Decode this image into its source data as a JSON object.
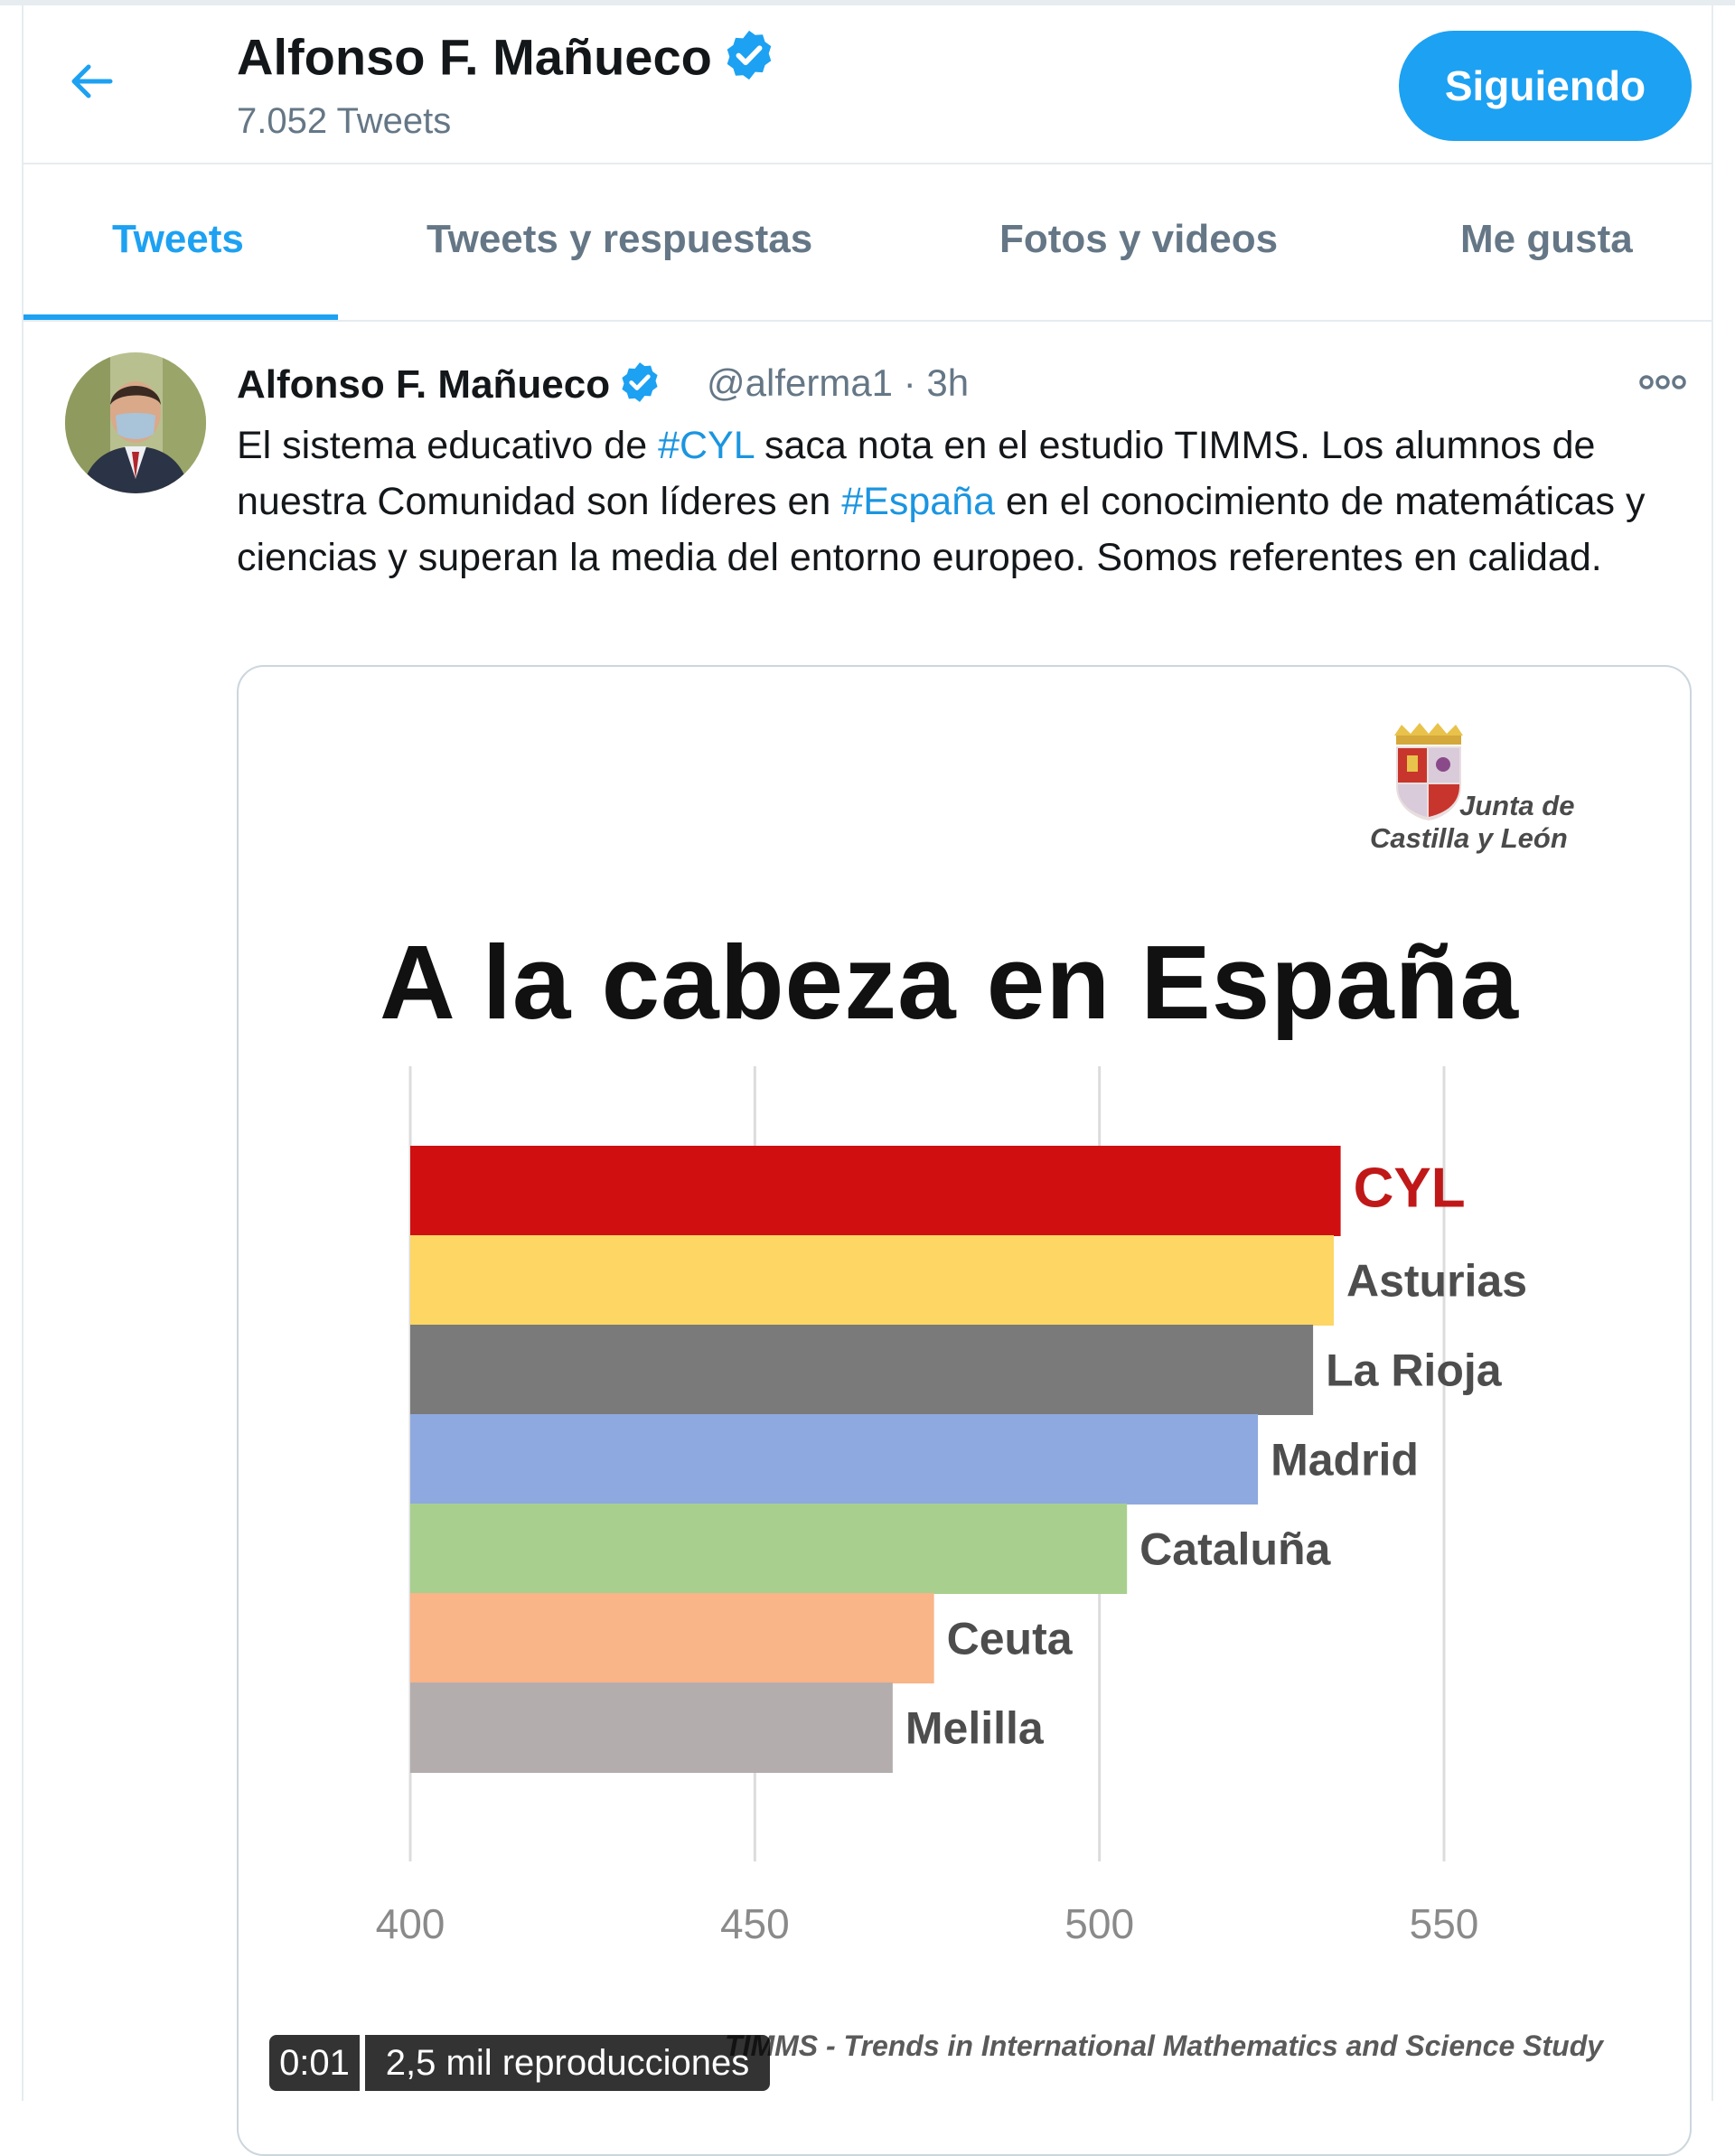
{
  "header": {
    "name": "Alfonso F. Mañueco",
    "tweet_count": "7.052 Tweets",
    "follow_label": "Siguiendo",
    "accent_color": "#1da1f2",
    "back_icon": "arrow-left-icon"
  },
  "tabs": [
    {
      "label": "Tweets",
      "active": true
    },
    {
      "label": "Tweets y respuestas",
      "active": false
    },
    {
      "label": "Fotos y videos",
      "active": false
    },
    {
      "label": "Me gusta",
      "active": false
    }
  ],
  "tweet": {
    "author": "Alfonso F. Mañueco",
    "handle": "@alferma1",
    "time": "3h",
    "text_parts": {
      "p1": "El sistema educativo de ",
      "h1": "#CYL",
      "p2": " saca nota en el estudio TIMMS. Los alumnos de nuestra Comunidad son líderes en ",
      "h2": "#España",
      "p3": " en el conocimiento de matemáticas y ciencias y superan la media del entorno europeo. Somos referentes en calidad."
    },
    "media": {
      "logo_text_1": "Junta de",
      "logo_text_2": "Castilla y León",
      "video_time": "0:01",
      "video_views": "2,5 mil reproducciones",
      "footer_text": "TIMMS - Trends in International Mathematics and Science Study"
    }
  },
  "chart_data": {
    "type": "bar",
    "orientation": "horizontal",
    "title": "A la cabeza en España",
    "categories": [
      "CYL",
      "Asturias",
      "La Rioja",
      "Madrid",
      "Cataluña",
      "Ceuta",
      "Melilla"
    ],
    "values": [
      535,
      534,
      531,
      523,
      504,
      476,
      470
    ],
    "colors": [
      "#d01010",
      "#fdd663",
      "#7a7a7a",
      "#8ea9df",
      "#a8cf8e",
      "#f9b487",
      "#b3adad"
    ],
    "label_colors": [
      "#c01818",
      "#4d4d4d",
      "#4d4d4d",
      "#4d4d4d",
      "#4d4d4d",
      "#4d4d4d",
      "#4d4d4d"
    ],
    "xlim": [
      400,
      550
    ],
    "xticks": [
      "400",
      "450",
      "500",
      "550"
    ],
    "grid": true
  }
}
